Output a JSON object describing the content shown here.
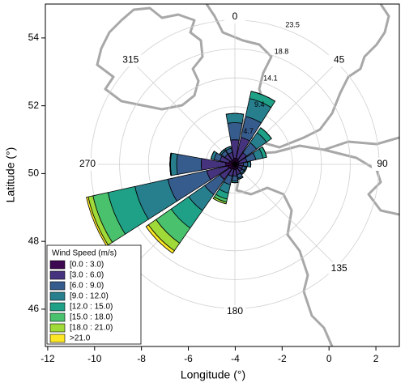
{
  "chart_data": {
    "type": "windrose",
    "xlabel": "Longitude (°)",
    "ylabel": "Latitude (°)",
    "xlim": [
      -12.1,
      3.0
    ],
    "ylim": [
      44.9,
      55.0
    ],
    "xticks": [
      -12,
      -10,
      -8,
      -6,
      -4,
      -2,
      0,
      2
    ],
    "yticks": [
      46,
      48,
      50,
      52,
      54
    ],
    "directions": [
      0,
      22.5,
      45,
      67.5,
      90,
      112.5,
      135,
      157.5,
      180,
      202.5,
      225,
      247.5,
      270,
      292.5,
      315,
      337.5
    ],
    "angle_ticks": [
      0,
      45,
      90,
      135,
      180,
      225,
      270,
      315
    ],
    "rlim": [
      0,
      23.5
    ],
    "rticks": [
      4.7,
      9.4,
      14.1,
      18.8,
      23.5
    ],
    "legend_title": "Wind Speed (m/s)",
    "legend_position": "lower left",
    "series": [
      {
        "name": "[0.0 : 3.0)",
        "color": "#3e0751",
        "values": [
          1.0,
          1.0,
          0.8,
          0.7,
          0.6,
          0.6,
          0.7,
          0.8,
          0.9,
          0.8,
          1.0,
          1.2,
          1.5,
          1.0,
          0.8,
          0.8
        ]
      },
      {
        "name": "[3.0 : 6.0)",
        "color": "#46337e",
        "values": [
          3.0,
          3.5,
          1.5,
          1.3,
          0.8,
          0.7,
          0.7,
          0.9,
          1.0,
          1.2,
          2.0,
          3.5,
          4.0,
          1.5,
          1.2,
          1.2
        ]
      },
      {
        "name": "[6.0 : 9.0)",
        "color": "#365c8d",
        "values": [
          2.8,
          3.5,
          2.0,
          1.5,
          0.7,
          0.5,
          0.4,
          0.6,
          0.8,
          1.4,
          3.0,
          6.5,
          4.0,
          1.0,
          0.7,
          0.7
        ]
      },
      {
        "name": "[9.0 : 12.0)",
        "color": "#277f8e",
        "values": [
          1.5,
          3.0,
          2.0,
          1.2,
          0.5,
          0.2,
          0.2,
          0.2,
          0.3,
          1.4,
          3.2,
          5.5,
          1.0,
          0.5,
          0.3,
          0.3
        ]
      },
      {
        "name": "[12.0 : 15.0)",
        "color": "#1fa187",
        "values": [
          0,
          1.2,
          1.0,
          0.6,
          0,
          0,
          0,
          0,
          0,
          1.0,
          3.5,
          4.5,
          0.1,
          0,
          0,
          0
        ]
      },
      {
        "name": "[15.0 : 18.0)",
        "color": "#4ac16d",
        "values": [
          0,
          0,
          0,
          0,
          0,
          0,
          0,
          0,
          0,
          0.5,
          3.0,
          2.5,
          0,
          0,
          0,
          0
        ]
      },
      {
        "name": "[18.0 : 21.0)",
        "color": "#a0da39",
        "values": [
          0,
          0,
          0,
          0,
          0,
          0,
          0,
          0,
          0,
          0.3,
          1.5,
          0.8,
          0,
          0,
          0,
          0
        ]
      },
      {
        "name": ">21.0",
        "color": "#fde725",
        "values": [
          0,
          0,
          0,
          0,
          0,
          0,
          0,
          0,
          0,
          0,
          0.5,
          0.3,
          0,
          0,
          0,
          0
        ]
      }
    ]
  }
}
